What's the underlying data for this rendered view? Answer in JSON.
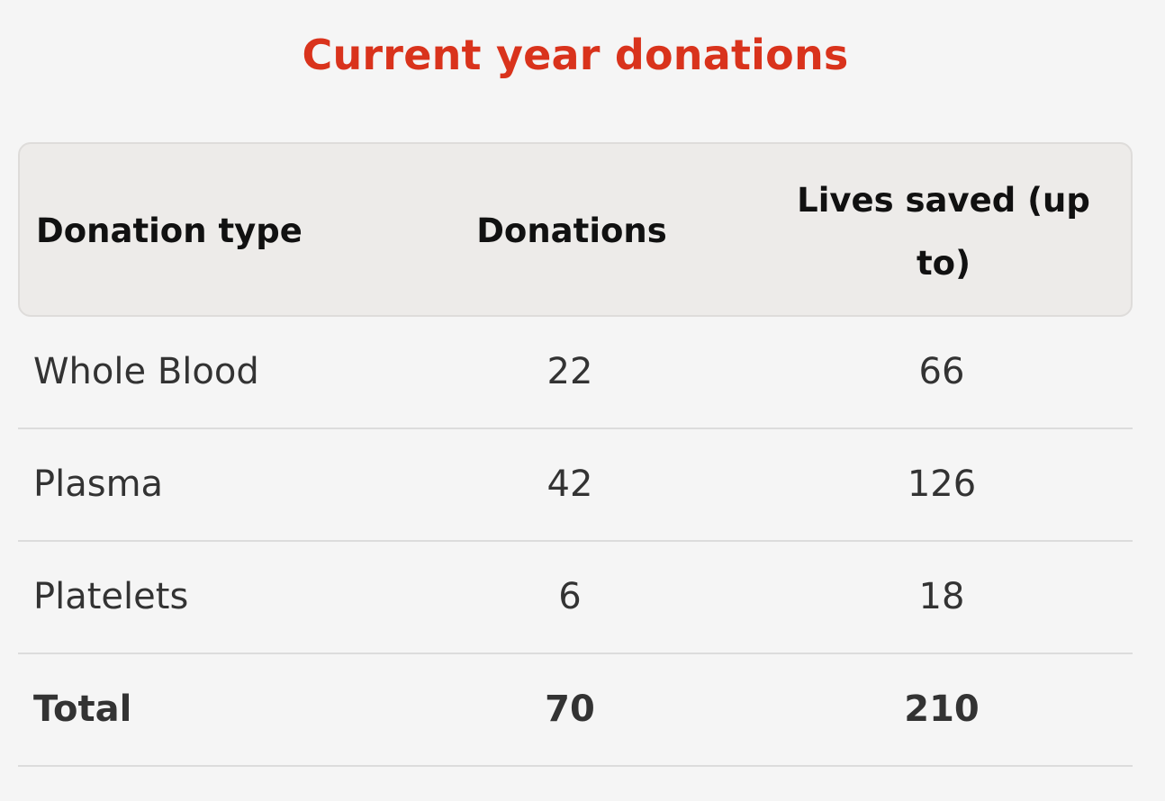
{
  "title": "Current year donations",
  "table": {
    "headers": {
      "donation_type": "Donation type",
      "donations": "Donations",
      "lives_saved": "Lives saved (up to)"
    },
    "rows": [
      {
        "type": "Whole Blood",
        "donations": "22",
        "lives": "66"
      },
      {
        "type": "Plasma",
        "donations": "42",
        "lives": "126"
      },
      {
        "type": "Platelets",
        "donations": "6",
        "lives": "18"
      }
    ],
    "total": {
      "label": "Total",
      "donations": "70",
      "lives": "210"
    }
  },
  "colors": {
    "title": "#d9331c",
    "header_bg": "#edebe9",
    "page_bg": "#f5f5f5"
  }
}
